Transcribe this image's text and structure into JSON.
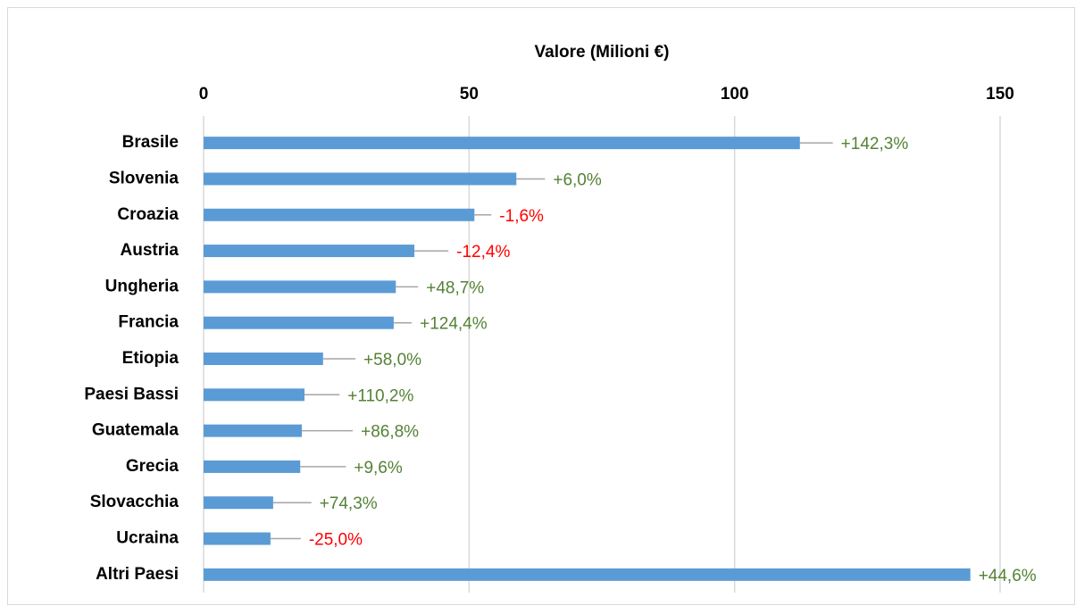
{
  "chart_data": {
    "type": "hbar",
    "x_axis_label": "Valore (Milioni €)",
    "categories": [
      "Brasile",
      "Slovenia",
      "Croazia",
      "Austria",
      "Ungheria",
      "Francia",
      "Etiopia",
      "Paesi Bassi",
      "Guatemala",
      "Grecia",
      "Slovacchia",
      "Ucraina",
      "Altri Paesi"
    ],
    "values": [
      112.3,
      58.9,
      51.0,
      39.7,
      36.2,
      35.8,
      22.5,
      19.0,
      18.5,
      18.2,
      13.1,
      12.6,
      144.4
    ],
    "errors": [
      6.2,
      5.4,
      3.2,
      6.4,
      4.2,
      3.4,
      6.1,
      6.6,
      9.6,
      8.6,
      7.2,
      5.7,
      0
    ],
    "growth_labels": [
      "+142,3%",
      "+6,0%",
      "-1,6%",
      "-12,4%",
      "+48,7%",
      "+124,4%",
      "+58,0%",
      "+110,2%",
      "+86,8%",
      "+9,6%",
      "+74,3%",
      "-25,0%",
      "+44,6%"
    ],
    "growth_label_colors": [
      "#548235",
      "#548235",
      "#ff0000",
      "#ff0000",
      "#548235",
      "#548235",
      "#548235",
      "#548235",
      "#548235",
      "#548235",
      "#548235",
      "#ff0000",
      "#548235"
    ],
    "color": "#5b9bd5",
    "error_color": "#a6a6a6",
    "xlim": [
      0,
      150
    ],
    "xticks": [
      0,
      50,
      100,
      150
    ],
    "grid": true
  }
}
